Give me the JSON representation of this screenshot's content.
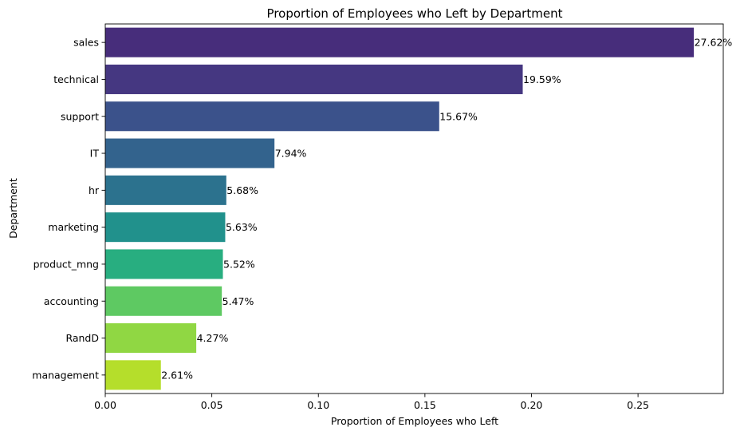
{
  "chart_data": {
    "type": "bar",
    "orientation": "horizontal",
    "title": "Proportion of Employees who Left by Department",
    "xlabel": "Proportion of Employees who Left",
    "ylabel": "Department",
    "xlim": [
      0,
      0.29
    ],
    "xticks": [
      0.0,
      0.05,
      0.1,
      0.15,
      0.2,
      0.25
    ],
    "xtick_labels": [
      "0.00",
      "0.05",
      "0.10",
      "0.15",
      "0.20",
      "0.25"
    ],
    "grid": false,
    "legend": "none",
    "categories": [
      "sales",
      "technical",
      "support",
      "IT",
      "hr",
      "marketing",
      "product_mng",
      "accounting",
      "RandD",
      "management"
    ],
    "values": [
      0.2762,
      0.1959,
      0.1567,
      0.0794,
      0.0568,
      0.0563,
      0.0552,
      0.0547,
      0.0427,
      0.0261
    ],
    "data_labels": [
      "27.62%",
      "19.59%",
      "15.67%",
      "7.94%",
      "5.68%",
      "5.63%",
      "5.52%",
      "5.47%",
      "4.27%",
      "2.61%"
    ],
    "colors": [
      "#472d7b",
      "#453781",
      "#3b528b",
      "#33638d",
      "#2c728e",
      "#21918c",
      "#28ae80",
      "#5ec962",
      "#90d743",
      "#b5de2b"
    ]
  }
}
